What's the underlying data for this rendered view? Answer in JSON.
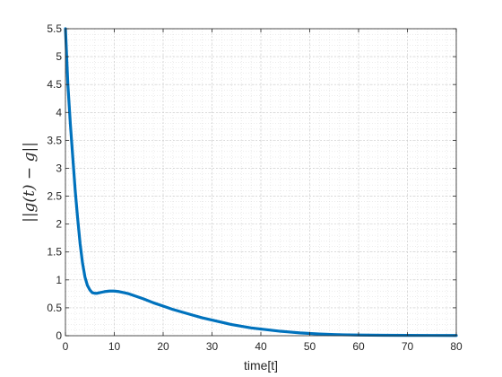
{
  "chart_data": {
    "type": "line",
    "title": "",
    "xlabel": "time[t]",
    "ylabel": "||g(t) − g||",
    "xlim": [
      0,
      80
    ],
    "ylim": [
      0,
      5.5
    ],
    "xticks": [
      0,
      10,
      20,
      30,
      40,
      50,
      60,
      70,
      80
    ],
    "yticks": [
      0,
      0.5,
      1,
      1.5,
      2,
      2.5,
      3,
      3.5,
      4,
      4.5,
      5,
      5.5
    ],
    "xtick_labels": [
      "0",
      "10",
      "20",
      "30",
      "40",
      "50",
      "60",
      "70",
      "80"
    ],
    "ytick_labels": [
      "0",
      "0.5",
      "1",
      "1.5",
      "2",
      "2.5",
      "3",
      "3.5",
      "4",
      "4.5",
      "5",
      "5.5"
    ],
    "grid": true,
    "minor_grid": true,
    "legend": false,
    "series": [
      {
        "color": "#0072BD",
        "x": [
          0,
          0.5,
          1,
          1.5,
          2,
          2.5,
          3,
          3.5,
          4,
          4.5,
          5,
          5.5,
          6,
          6.5,
          7,
          7.5,
          8,
          9,
          10,
          11,
          12,
          13,
          14,
          15,
          16,
          18,
          20,
          22,
          24,
          26,
          28,
          30,
          32,
          34,
          36,
          38,
          40,
          42,
          44,
          46,
          48,
          50,
          52,
          55,
          58,
          60,
          65,
          70,
          75,
          80
        ],
        "y": [
          5.5,
          4.5,
          3.8,
          3.2,
          2.6,
          2.1,
          1.65,
          1.3,
          1.05,
          0.9,
          0.82,
          0.77,
          0.76,
          0.76,
          0.77,
          0.78,
          0.79,
          0.8,
          0.8,
          0.79,
          0.77,
          0.75,
          0.72,
          0.69,
          0.66,
          0.59,
          0.53,
          0.47,
          0.42,
          0.37,
          0.32,
          0.28,
          0.24,
          0.2,
          0.17,
          0.14,
          0.12,
          0.1,
          0.08,
          0.065,
          0.05,
          0.04,
          0.03,
          0.02,
          0.015,
          0.012,
          0.008,
          0.006,
          0.005,
          0.004
        ]
      }
    ]
  }
}
